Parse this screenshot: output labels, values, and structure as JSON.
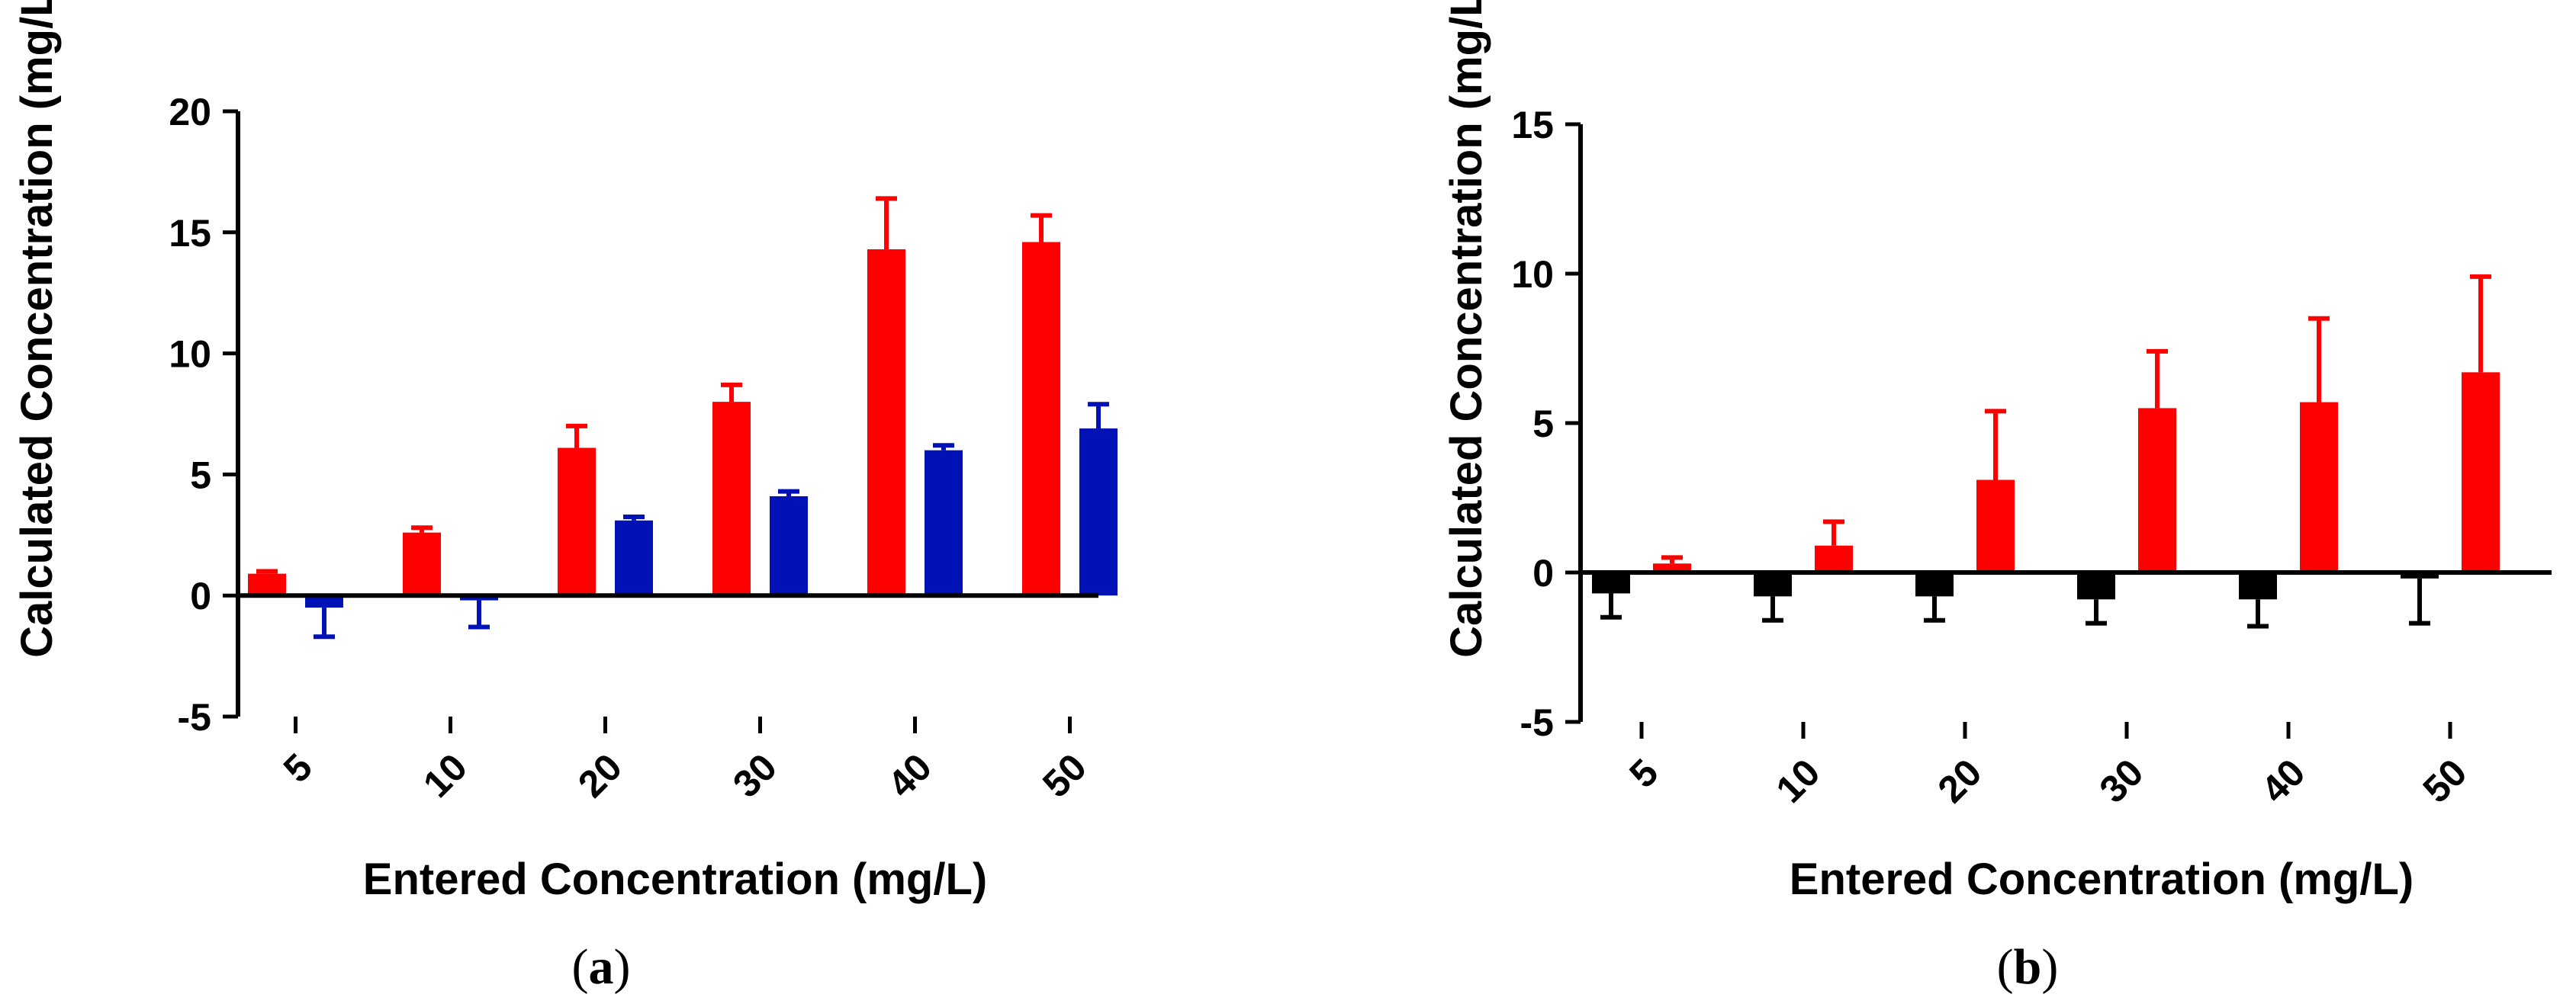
{
  "chart_data": [
    {
      "type": "bar",
      "panel_label": "(a)",
      "panel_letter": "a",
      "xlabel": "Entered Concentration (mg/L)",
      "ylabel": "Calculated Concentration (mg/L)",
      "ylim": [
        -5,
        20
      ],
      "yticks": [
        -5,
        0,
        5,
        10,
        15,
        20
      ],
      "categories": [
        "5",
        "10",
        "20",
        "30",
        "40",
        "50"
      ],
      "series": [
        {
          "name": "red",
          "color": "#ff0000",
          "values": [
            0.9,
            2.6,
            6.1,
            8.0,
            14.3,
            14.6
          ],
          "errors": [
            0.1,
            0.2,
            0.9,
            0.7,
            2.1,
            1.1
          ]
        },
        {
          "name": "blue",
          "color": "#0012b5",
          "values": [
            -0.5,
            -0.2,
            3.1,
            4.1,
            6.0,
            6.9
          ],
          "errors": [
            1.2,
            1.1,
            0.15,
            0.2,
            0.2,
            1.0
          ]
        }
      ]
    },
    {
      "type": "bar",
      "panel_label": "(b)",
      "panel_letter": "b",
      "xlabel": "Entered Concentration (mg/L)",
      "ylabel": "Calculated Concentration (mg/L)",
      "ylim": [
        -5,
        15
      ],
      "yticks": [
        -5,
        0,
        5,
        10,
        15
      ],
      "categories": [
        "5",
        "10",
        "20",
        "30",
        "40",
        "50"
      ],
      "series": [
        {
          "name": "black",
          "color": "#000000",
          "values": [
            -0.7,
            -0.8,
            -0.8,
            -0.9,
            -0.9,
            -0.2
          ],
          "errors": [
            0.8,
            0.8,
            0.8,
            0.8,
            0.9,
            1.5
          ]
        },
        {
          "name": "red",
          "color": "#ff0000",
          "values": [
            0.3,
            0.9,
            3.1,
            5.5,
            5.7,
            6.7
          ],
          "errors": [
            0.2,
            0.8,
            2.3,
            1.9,
            2.8,
            3.2
          ]
        }
      ]
    }
  ]
}
